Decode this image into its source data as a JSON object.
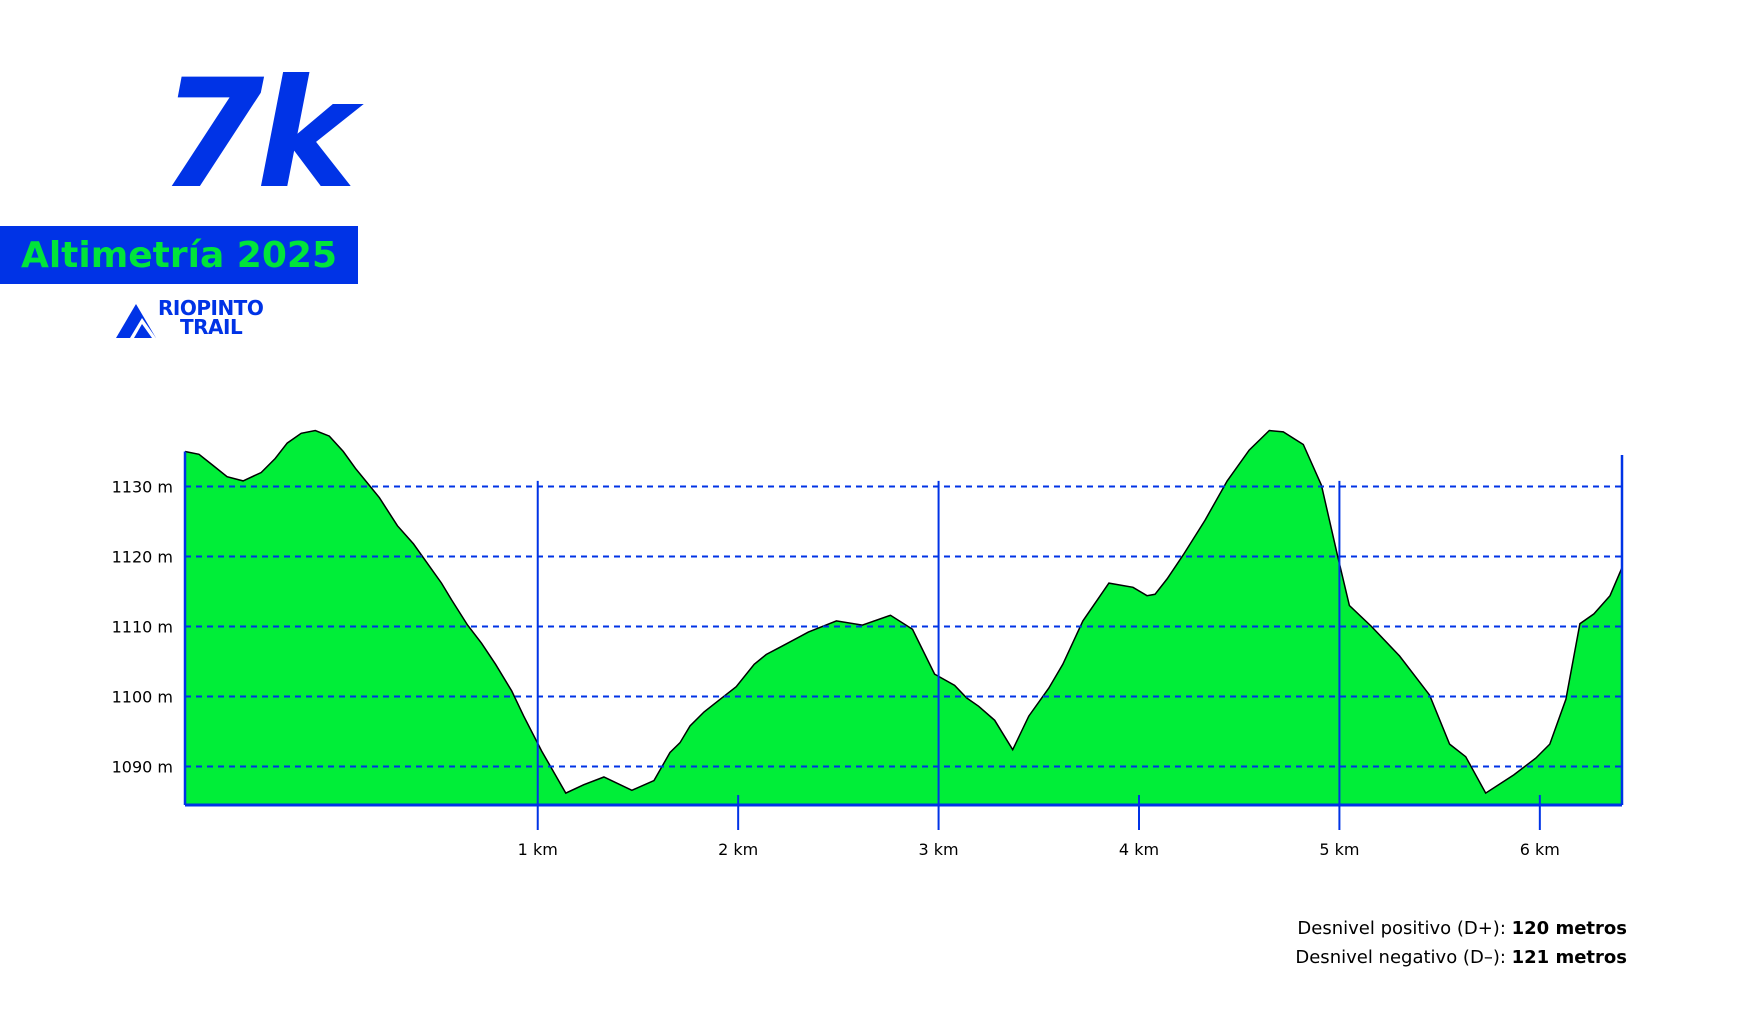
{
  "header": {
    "title": "7k",
    "subtitle": "Altimetría 2025"
  },
  "logo": {
    "line1": "RIOPINTO",
    "line2": "TRAIL"
  },
  "colors": {
    "brand_blue": "#0033e6",
    "profile_green": "#00ee38",
    "banner_text_green": "#00e53a"
  },
  "stats": {
    "positive_label": "Desnivel positivo (D+): ",
    "positive_value": "120 metros",
    "negative_label": "Desnivel negativo (D–): ",
    "negative_value": "121 metros"
  },
  "chart_data": {
    "type": "area",
    "x_unit": "km",
    "y_unit": "m",
    "xlim": [
      -0.76,
      6.41
    ],
    "ylim": [
      1084.5,
      1134.5
    ],
    "y_ticks": [
      1130,
      1120,
      1110,
      1100,
      1090
    ],
    "y_tick_labels": [
      "1130 m",
      "1120 m",
      "1110 m",
      "1100 m",
      "1090 m"
    ],
    "x_ticks": [
      0,
      1,
      2,
      3,
      4,
      5,
      6
    ],
    "x_tick_labels": [
      "",
      "1 km",
      "2 km",
      "3 km",
      "4 km",
      "5 km",
      "6 km"
    ],
    "grid": "horizontal dashed lines at y ticks",
    "x": [
      -0.76,
      -0.69,
      -0.62,
      -0.55,
      -0.47,
      -0.38,
      -0.31,
      -0.25,
      -0.18,
      -0.11,
      -0.04,
      0.03,
      0.09,
      0.15,
      0.21,
      0.3,
      0.38,
      0.46,
      0.52,
      0.57,
      0.65,
      0.72,
      0.79,
      0.87,
      0.93,
      1.02,
      1.14,
      1.23,
      1.33,
      1.47,
      1.58,
      1.66,
      1.71,
      1.76,
      1.83,
      1.91,
      1.99,
      2.08,
      2.14,
      2.22,
      2.35,
      2.49,
      2.62,
      2.76,
      2.87,
      2.98,
      3.08,
      3.14,
      3.2,
      3.28,
      3.37,
      3.45,
      3.55,
      3.62,
      3.72,
      3.85,
      3.97,
      4.04,
      4.08,
      4.14,
      4.22,
      4.33,
      4.44,
      4.55,
      4.65,
      4.72,
      4.82,
      4.91,
      4.99,
      5.05,
      5.16,
      5.3,
      5.45,
      5.55,
      5.63,
      5.73,
      5.87,
      5.98,
      6.05,
      6.13,
      6.2,
      6.27,
      6.35,
      6.41
    ],
    "y": [
      1135,
      1134.6,
      1133,
      1131.4,
      1130.8,
      1132,
      1134,
      1136.2,
      1137.6,
      1138,
      1137.2,
      1135,
      1132.6,
      1130.5,
      1128.4,
      1124.4,
      1121.8,
      1118.6,
      1116.2,
      1113.8,
      1110.2,
      1107.6,
      1104.6,
      1100.8,
      1097.2,
      1092.2,
      1086.2,
      1087.4,
      1088.5,
      1086.6,
      1088,
      1092,
      1093.4,
      1095.8,
      1097.8,
      1099.6,
      1101.4,
      1104.6,
      1106,
      1107.2,
      1109.2,
      1110.8,
      1110.2,
      1111.6,
      1109.6,
      1103.2,
      1101.6,
      1099.8,
      1098.6,
      1096.6,
      1092.4,
      1097.2,
      1101.2,
      1104.6,
      1110.8,
      1116.2,
      1115.6,
      1114.4,
      1114.6,
      1116.8,
      1120.2,
      1125.2,
      1130.8,
      1135.2,
      1138,
      1137.8,
      1136,
      1130.2,
      1120.2,
      1113,
      1110,
      1105.8,
      1100.2,
      1093.2,
      1091.4,
      1086.2,
      1088.8,
      1091.2,
      1093.2,
      1099.6,
      1110.4,
      1111.8,
      1114.4,
      1118.4
    ]
  }
}
